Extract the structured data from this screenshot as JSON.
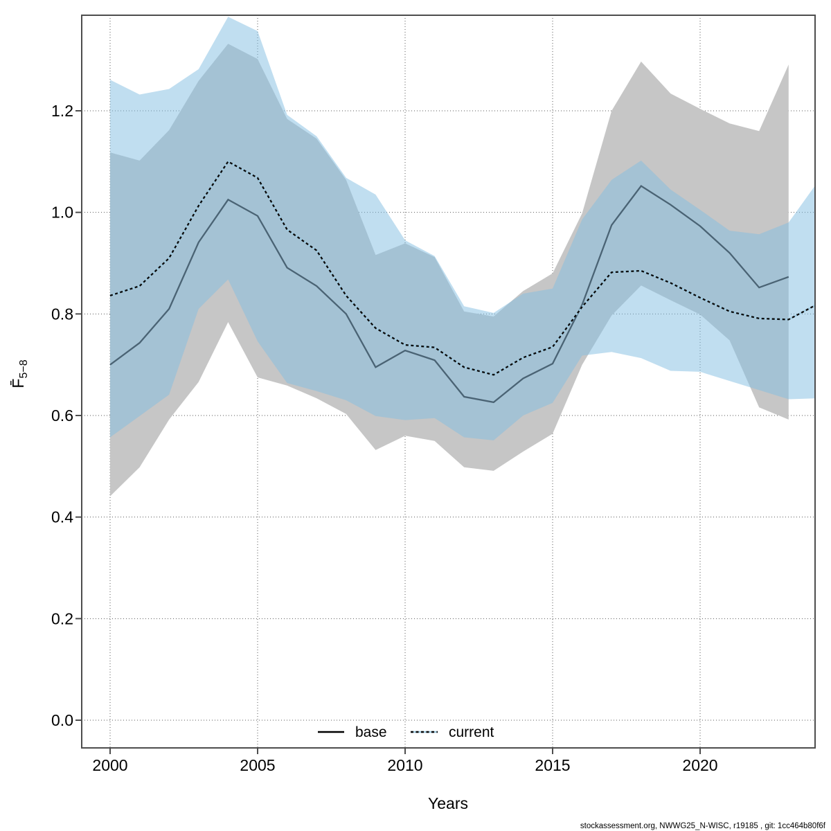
{
  "footer": {
    "text": "stockassessment.org, NWWG25_N-WISC, r19185 , git: 1cc464b80f6f"
  },
  "chart_data": {
    "type": "line",
    "title": "",
    "xlabel": "Years",
    "ylabel_main": "F̄",
    "ylabel_sub": "5−8",
    "x_ticks": [
      2000,
      2005,
      2010,
      2015,
      2020
    ],
    "y_ticks": [
      "0.0",
      "0.2",
      "0.4",
      "0.6",
      "0.8",
      "1.0",
      "1.2"
    ],
    "ylim": [
      0.0,
      1.44
    ],
    "xlim": [
      1999.05,
      2024.1
    ],
    "grid": true,
    "legend_position": "bottom-center",
    "legend": {
      "base": "base",
      "current": "current"
    },
    "colors": {
      "frame": "#4d4d4d",
      "gridline": "#555555",
      "base_line": "#4a6374",
      "base_legend_line": "#000000",
      "base_band": "#c6c6c6",
      "current_line_under": "#9ecae1",
      "current_line_dash": "#0a0a0a",
      "current_band": "rgba(130,190,225,0.5)"
    },
    "series": [
      {
        "name": "base",
        "style": "solid",
        "years": [
          2000,
          2001,
          2002,
          2003,
          2004,
          2005,
          2006,
          2007,
          2008,
          2009,
          2010,
          2011,
          2012,
          2013,
          2014,
          2015,
          2016,
          2017,
          2018,
          2019,
          2020,
          2021,
          2022,
          2023
        ],
        "values": [
          0.7,
          0.743,
          0.81,
          0.941,
          1.025,
          0.993,
          0.891,
          0.855,
          0.8,
          0.695,
          0.728,
          0.709,
          0.637,
          0.626,
          0.673,
          0.702,
          0.818,
          0.975,
          1.052,
          1.015,
          0.973,
          0.92,
          0.852,
          0.873
        ],
        "ci_low": [
          0.441,
          0.498,
          0.592,
          0.666,
          0.784,
          0.675,
          0.659,
          0.634,
          0.603,
          0.532,
          0.56,
          0.55,
          0.498,
          0.491,
          0.529,
          0.564,
          0.7,
          0.797,
          0.856,
          0.827,
          0.799,
          0.748,
          0.616,
          0.592
        ],
        "ci_high": [
          1.118,
          1.102,
          1.162,
          1.259,
          1.332,
          1.302,
          1.184,
          1.145,
          1.064,
          0.916,
          0.939,
          0.912,
          0.805,
          0.795,
          0.845,
          0.88,
          0.998,
          1.2,
          1.297,
          1.234,
          1.204,
          1.175,
          1.16,
          1.291
        ]
      },
      {
        "name": "current",
        "style": "dotted",
        "years": [
          2000,
          2001,
          2002,
          2003,
          2004,
          2005,
          2006,
          2007,
          2008,
          2009,
          2010,
          2011,
          2012,
          2013,
          2014,
          2015,
          2016,
          2017,
          2018,
          2019,
          2020,
          2021,
          2022,
          2023,
          2024
        ],
        "values": [
          0.836,
          0.855,
          0.91,
          1.013,
          1.1,
          1.068,
          0.966,
          0.925,
          0.836,
          0.772,
          0.739,
          0.734,
          0.695,
          0.68,
          0.714,
          0.735,
          0.814,
          0.882,
          0.885,
          0.861,
          0.832,
          0.805,
          0.791,
          0.789,
          0.82
        ],
        "ci_low": [
          0.557,
          0.599,
          0.641,
          0.81,
          0.868,
          0.746,
          0.664,
          0.648,
          0.63,
          0.599,
          0.591,
          0.595,
          0.557,
          0.551,
          0.6,
          0.625,
          0.718,
          0.725,
          0.713,
          0.688,
          0.686,
          0.668,
          0.65,
          0.632,
          0.634
        ],
        "ci_high": [
          1.261,
          1.232,
          1.243,
          1.282,
          1.385,
          1.357,
          1.192,
          1.15,
          1.068,
          1.035,
          0.945,
          0.914,
          0.815,
          0.802,
          0.84,
          0.85,
          0.986,
          1.064,
          1.102,
          1.045,
          1.005,
          0.964,
          0.957,
          0.98,
          1.061
        ]
      }
    ]
  }
}
